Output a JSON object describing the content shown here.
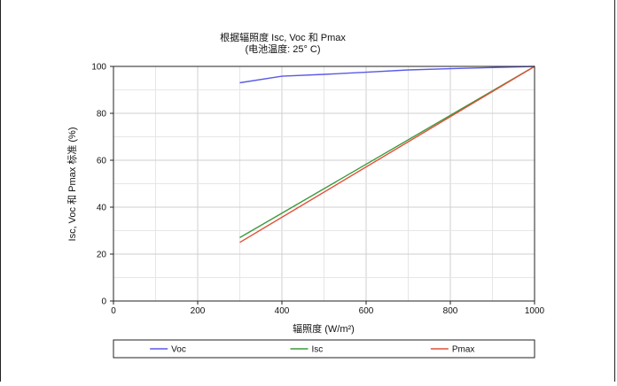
{
  "chart_data": {
    "type": "line",
    "title": "根据辐照度 Isc, Voc 和 Pmax",
    "subtitle": "(电池温度: 25° C)",
    "xlabel": "辐照度 (W/m²)",
    "ylabel": "Isc, Voc 和 Pmax 标准 (%)",
    "xlim": [
      0,
      1000
    ],
    "ylim": [
      0,
      100
    ],
    "x_ticks": [
      "0",
      "200",
      "400",
      "600",
      "800",
      "1000"
    ],
    "y_ticks": [
      "0",
      "20",
      "40",
      "60",
      "80",
      "100"
    ],
    "grid": true,
    "legend_position": "bottom",
    "series": [
      {
        "name": "Voc",
        "color": "#5a5ae6",
        "x": [
          300,
          400,
          500,
          600,
          700,
          800,
          900,
          1000
        ],
        "y": [
          93,
          95.8,
          96.6,
          97.5,
          98.5,
          99,
          99.5,
          100
        ]
      },
      {
        "name": "Isc",
        "color": "#3a9a3a",
        "x": [
          300,
          1000
        ],
        "y": [
          27,
          100
        ]
      },
      {
        "name": "Pmax",
        "color": "#e0503a",
        "x": [
          300,
          1000
        ],
        "y": [
          25,
          100
        ]
      }
    ]
  }
}
